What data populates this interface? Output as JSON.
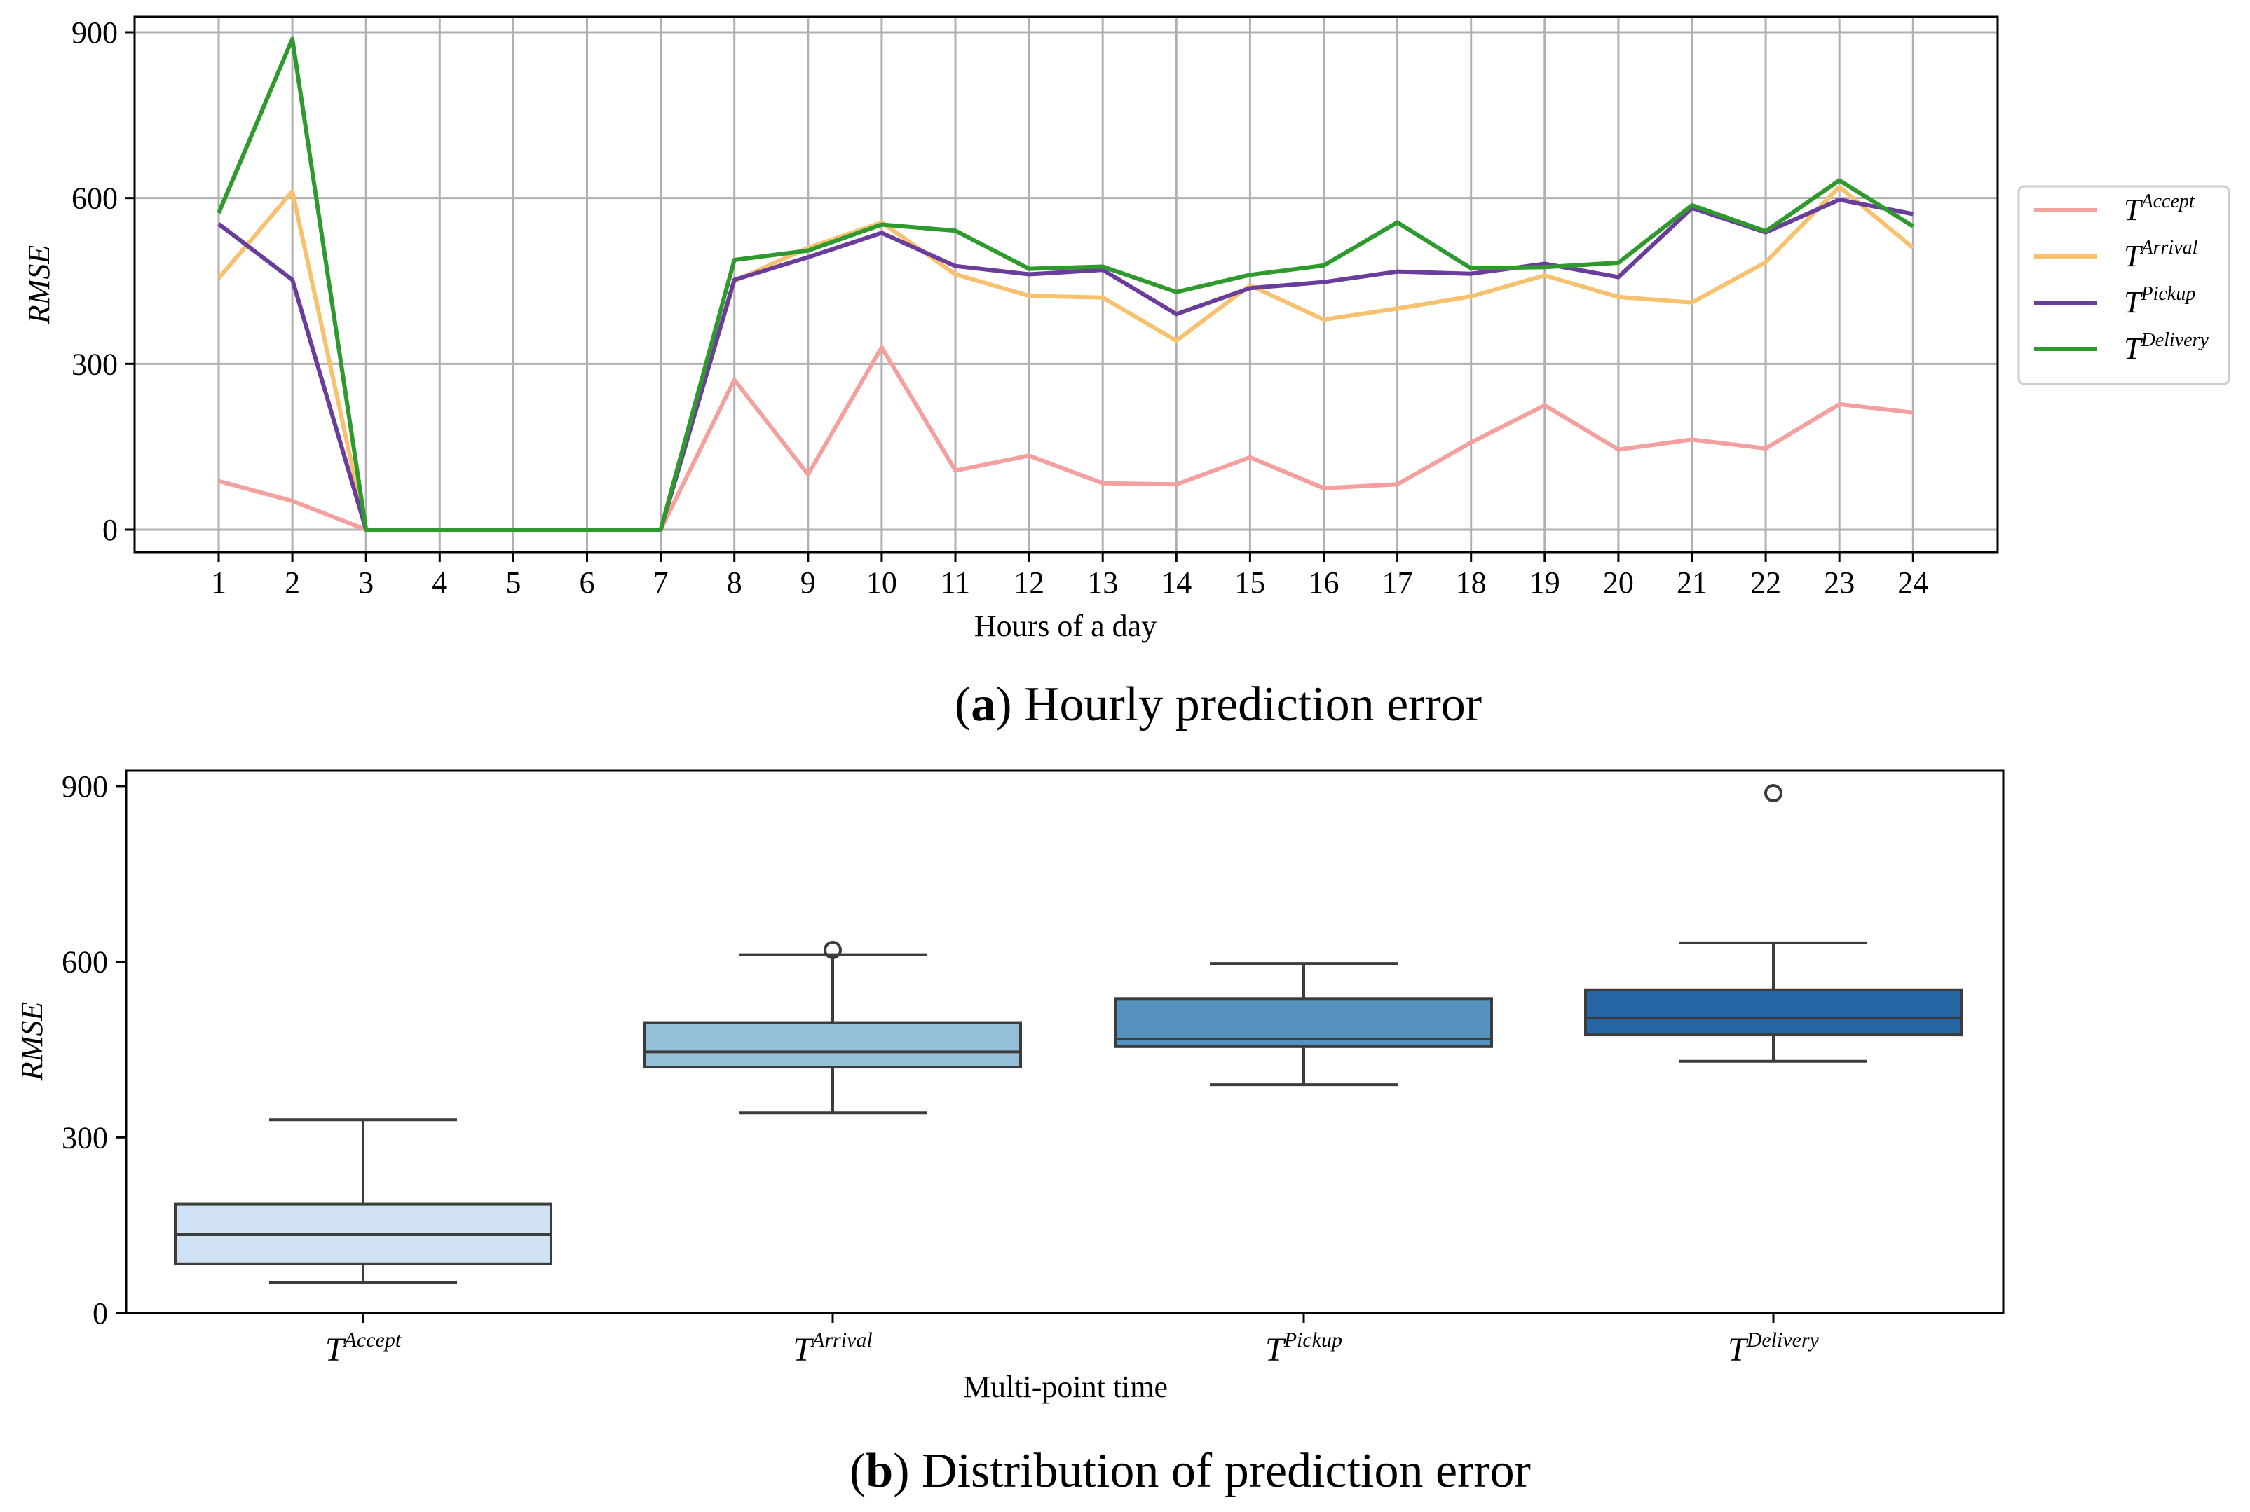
{
  "chart_data": [
    {
      "type": "line",
      "caption_letter": "a",
      "caption_text": "Hourly prediction error",
      "xlabel": "Hours of a day",
      "ylabel": "RMSE",
      "ylim": [
        0,
        900
      ],
      "yticks": [
        "0",
        "300",
        "600",
        "900"
      ],
      "x": [
        1,
        2,
        3,
        4,
        5,
        6,
        7,
        8,
        9,
        10,
        11,
        12,
        13,
        14,
        15,
        16,
        17,
        18,
        19,
        20,
        21,
        22,
        23,
        24
      ],
      "x_labels": [
        "1",
        "2",
        "3",
        "4",
        "5",
        "6",
        "7",
        "8",
        "9",
        "10",
        "11",
        "12",
        "13",
        "14",
        "15",
        "16",
        "17",
        "18",
        "19",
        "20",
        "21",
        "22",
        "23",
        "24"
      ],
      "grid": true,
      "legend_position": "right",
      "series": [
        {
          "name": "T",
          "sup": "Accept",
          "color": "#f4a09e",
          "values": [
            88,
            52,
            0,
            0,
            0,
            0,
            0,
            271,
            100,
            330,
            107,
            134,
            84,
            82,
            131,
            75,
            82,
            158,
            225,
            145,
            163,
            147,
            227,
            212
          ]
        },
        {
          "name": "T",
          "sup": "Arrival",
          "color": "#f7c16e",
          "values": [
            455,
            612,
            0,
            0,
            0,
            0,
            0,
            450,
            510,
            556,
            462,
            423,
            420,
            342,
            442,
            380,
            400,
            422,
            460,
            421,
            411,
            484,
            620,
            510
          ]
        },
        {
          "name": "T",
          "sup": "Pickup",
          "color": "#6a3d9a",
          "values": [
            553,
            452,
            0,
            0,
            0,
            0,
            0,
            452,
            493,
            537,
            477,
            462,
            470,
            390,
            437,
            448,
            467,
            463,
            481,
            457,
            582,
            538,
            597,
            571
          ]
        },
        {
          "name": "T",
          "sup": "Delivery",
          "color": "#2e9a2e",
          "values": [
            573,
            888,
            0,
            0,
            0,
            0,
            0,
            488,
            505,
            552,
            541,
            472,
            476,
            430,
            461,
            478,
            556,
            473,
            475,
            483,
            587,
            540,
            632,
            549
          ]
        }
      ]
    },
    {
      "type": "box",
      "caption_letter": "b",
      "caption_text": "Distribution of prediction error",
      "xlabel": "Multi-point time",
      "ylabel": "RMSE",
      "ylim": [
        0,
        900
      ],
      "yticks": [
        "0",
        "300",
        "600",
        "900"
      ],
      "categories": [
        {
          "name": "T",
          "sup": "Accept",
          "color": "#cfe1f2",
          "whisker_low": 52,
          "q1": 84,
          "median": 134,
          "q3": 186,
          "whisker_high": 330,
          "outliers": []
        },
        {
          "name": "T",
          "sup": "Arrival",
          "color": "#95bfd9",
          "whisker_low": 342,
          "q1": 420,
          "median": 446,
          "q3": 496,
          "whisker_high": 612,
          "outliers": [
            620
          ]
        },
        {
          "name": "T",
          "sup": "Pickup",
          "color": "#5592c0",
          "whisker_low": 390,
          "q1": 455,
          "median": 468,
          "q3": 537,
          "whisker_high": 597,
          "outliers": []
        },
        {
          "name": "T",
          "sup": "Delivery",
          "color": "#2565a4",
          "whisker_low": 430,
          "q1": 475,
          "median": 504,
          "q3": 552,
          "whisker_high": 632,
          "outliers": [
            888
          ]
        }
      ]
    }
  ]
}
